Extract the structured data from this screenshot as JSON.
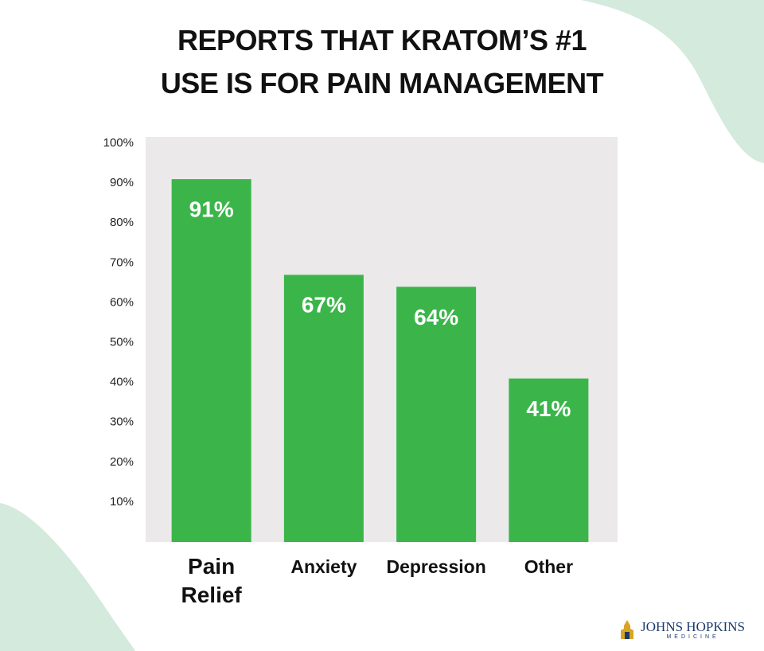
{
  "chart_data": {
    "type": "bar",
    "title": "REPORTS THAT KRATOM’S #1 USE IS FOR PAIN MANAGEMENT",
    "categories": [
      "Pain Relief",
      "Anxiety",
      "Depression",
      "Other"
    ],
    "values": [
      91,
      67,
      64,
      41
    ],
    "value_labels": [
      "91%",
      "67%",
      "64%",
      "41%"
    ],
    "color": "#3bb54a",
    "ylim": [
      0,
      100
    ],
    "yticks": [
      {
        "value": 10,
        "label": "10%"
      },
      {
        "value": 20,
        "label": "20%"
      },
      {
        "value": 30,
        "label": "30%"
      },
      {
        "value": 40,
        "label": "40%"
      },
      {
        "value": 50,
        "label": "50%"
      },
      {
        "value": 60,
        "label": "60%"
      },
      {
        "value": 70,
        "label": "70%"
      },
      {
        "value": 80,
        "label": "80%"
      },
      {
        "value": 90,
        "label": "90%"
      },
      {
        "value": 100,
        "label": "100%"
      }
    ],
    "grid": false
  },
  "logo": {
    "name": "JOHNS HOPKINS",
    "sub": "MEDICINE"
  }
}
